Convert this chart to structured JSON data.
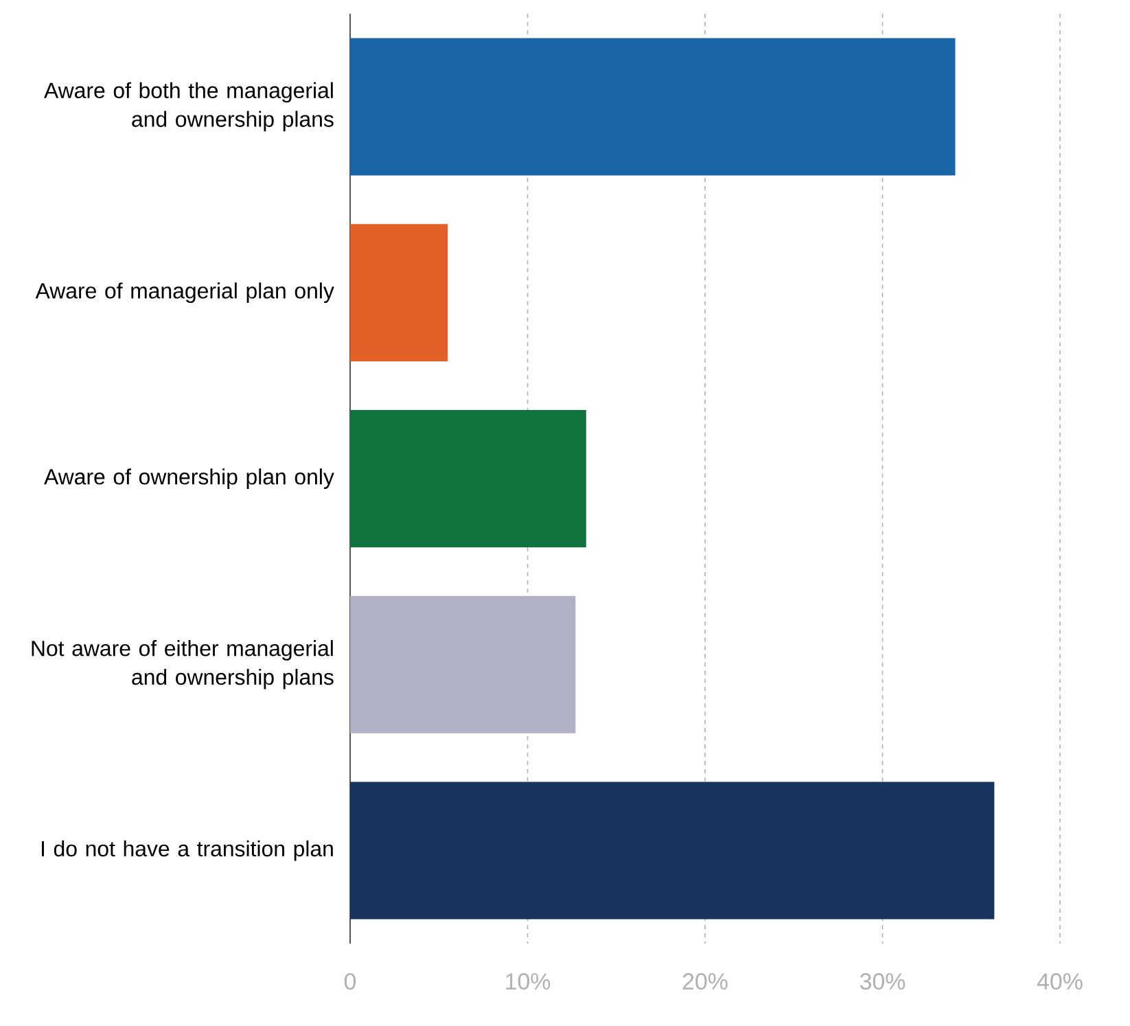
{
  "chart_data": {
    "type": "bar",
    "orientation": "horizontal",
    "categories": [
      "Aware of both the managerial and ownership plans",
      "Aware of managerial plan only",
      "Aware of ownership plan only",
      "Not aware of either managerial and ownership plans",
      "I do not have a transition plan"
    ],
    "values": [
      34.1,
      5.5,
      13.3,
      12.7,
      36.3
    ],
    "colors": [
      "#1a65a6",
      "#e35f28",
      "#11733e",
      "#b1b1c6",
      "#17355e"
    ],
    "xlim": [
      0,
      40
    ],
    "xticks": [
      0,
      {
        "value": 10,
        "label": "10%"
      },
      {
        "value": 20,
        "label": "20%"
      },
      {
        "value": 30,
        "label": "30%"
      },
      {
        "value": 40,
        "label": "40%"
      }
    ],
    "grid": "x"
  }
}
